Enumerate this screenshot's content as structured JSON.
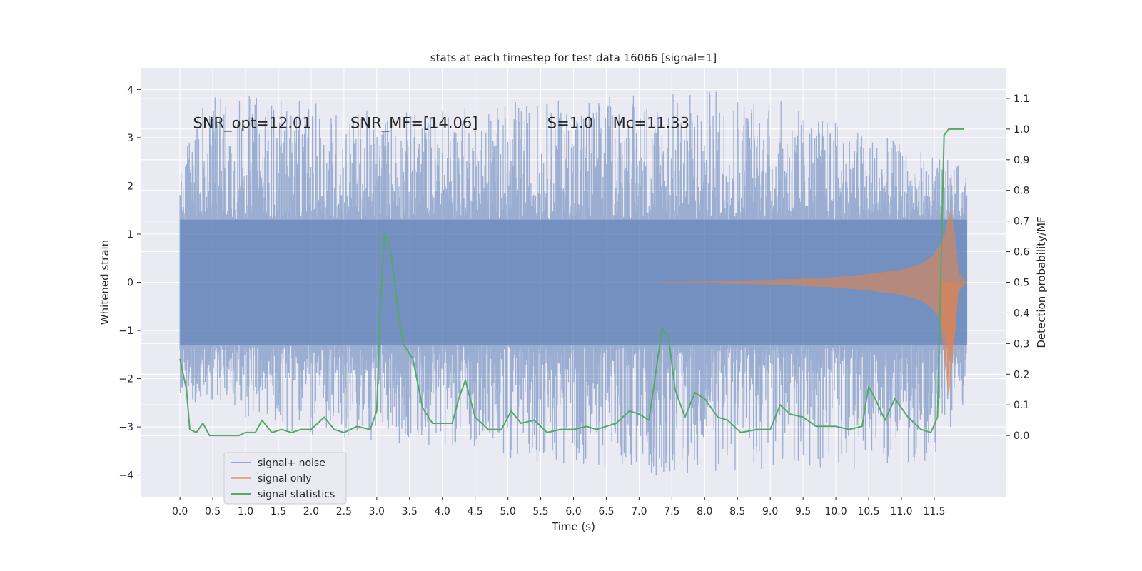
{
  "chart_data": {
    "type": "line",
    "title": "stats at each timestep for test data 16066 [signal=1]",
    "xlabel": "Time (s)",
    "ylabel": "Whitened strain",
    "ylabel_right": "Detection probability/MF",
    "xlim": [
      -0.6,
      12.6
    ],
    "ylim": [
      -4.45,
      4.45
    ],
    "ylim_right": [
      -0.2,
      1.2
    ],
    "x_ticks": [
      0.0,
      0.5,
      1.0,
      1.5,
      2.0,
      2.5,
      3.0,
      3.5,
      4.0,
      4.5,
      5.0,
      5.5,
      6.0,
      6.5,
      7.0,
      7.5,
      8.0,
      8.5,
      9.0,
      9.5,
      10.0,
      10.5,
      11.0,
      11.5
    ],
    "x_tick_labels": [
      "0.0",
      "0.5",
      "1.0",
      "1.5",
      "2.0",
      "2.5",
      "3.0",
      "3.5",
      "4.0",
      "4.5",
      "5.0",
      "5.5",
      "6.0",
      "6.5",
      "7.0",
      "7.5",
      "8.0",
      "8.5",
      "9.0",
      "9.5",
      "10.0",
      "10.5",
      "11.0",
      "11.5"
    ],
    "y_ticks": [
      -4,
      -3,
      -2,
      -1,
      0,
      1,
      2,
      3,
      4
    ],
    "y_tick_labels": [
      "−4",
      "−3",
      "−2",
      "−1",
      "0",
      "1",
      "2",
      "3",
      "4"
    ],
    "y_ticks_right": [
      0.0,
      0.1,
      0.2,
      0.3,
      0.4,
      0.5,
      0.6,
      0.7,
      0.8,
      0.9,
      1.0,
      1.1
    ],
    "y_tick_labels_right": [
      "0.0",
      "0.1",
      "0.2",
      "0.3",
      "0.4",
      "0.5",
      "0.6",
      "0.7",
      "0.8",
      "0.9",
      "1.0",
      "1.1"
    ],
    "grid": true,
    "legend_position": "lower-left",
    "annotations": [
      {
        "text": "SNR_opt=12.01",
        "x": 0.2,
        "y": 3.2
      },
      {
        "text": "SNR_MF=[14.06]",
        "x": 2.6,
        "y": 3.2
      },
      {
        "text": "S=1.0",
        "x": 5.6,
        "y": 3.2
      },
      {
        "text": "Mc=11.33",
        "x": 6.6,
        "y": 3.2
      }
    ],
    "series": [
      {
        "name": "signal+ noise",
        "color": "#4c72b0",
        "axis": "left",
        "style": "dense-noise",
        "x_range": [
          0.0,
          12.0
        ],
        "core_band": [
          -1.3,
          1.3
        ],
        "envelope_upper": [
          [
            0.0,
            2.4
          ],
          [
            0.3,
            4.05
          ],
          [
            3.0,
            3.55
          ],
          [
            8.5,
            4.1
          ],
          [
            12.0,
            2.4
          ]
        ],
        "envelope_lower": [
          [
            0.0,
            -2.4
          ],
          [
            2.2,
            -3.3
          ],
          [
            4.4,
            -3.4
          ],
          [
            5.0,
            -3.65
          ],
          [
            7.3,
            -4.05
          ],
          [
            8.0,
            -4.0
          ],
          [
            11.4,
            -3.8
          ],
          [
            12.0,
            -2.6
          ]
        ]
      },
      {
        "name": "signal only",
        "color": "#dd8452",
        "axis": "left",
        "style": "chirp",
        "envelope": [
          [
            7.2,
            0.0
          ],
          [
            8.0,
            0.02
          ],
          [
            9.0,
            0.05
          ],
          [
            10.0,
            0.11
          ],
          [
            10.5,
            0.17
          ],
          [
            11.0,
            0.26
          ],
          [
            11.3,
            0.38
          ],
          [
            11.5,
            0.58
          ],
          [
            11.65,
            0.95
          ],
          [
            11.75,
            1.55
          ],
          [
            11.82,
            1.0
          ],
          [
            11.87,
            0.2
          ],
          [
            12.0,
            0.0
          ]
        ],
        "lower_tail": [
          [
            11.6,
            -0.9
          ],
          [
            11.72,
            -2.4
          ],
          [
            11.8,
            -1.4
          ],
          [
            11.87,
            -0.1
          ]
        ]
      },
      {
        "name": "signal statistics",
        "color": "#55a868",
        "axis": "right",
        "style": "line",
        "points": [
          [
            0.0,
            0.25
          ],
          [
            0.1,
            0.15
          ],
          [
            0.15,
            0.02
          ],
          [
            0.25,
            0.01
          ],
          [
            0.35,
            0.04
          ],
          [
            0.45,
            0.0
          ],
          [
            0.6,
            0.0
          ],
          [
            0.9,
            0.0
          ],
          [
            1.0,
            0.01
          ],
          [
            1.15,
            0.01
          ],
          [
            1.25,
            0.05
          ],
          [
            1.4,
            0.01
          ],
          [
            1.55,
            0.02
          ],
          [
            1.7,
            0.01
          ],
          [
            1.85,
            0.02
          ],
          [
            2.0,
            0.02
          ],
          [
            2.2,
            0.06
          ],
          [
            2.35,
            0.02
          ],
          [
            2.5,
            0.01
          ],
          [
            2.7,
            0.03
          ],
          [
            2.9,
            0.02
          ],
          [
            3.0,
            0.08
          ],
          [
            3.05,
            0.4
          ],
          [
            3.12,
            0.66
          ],
          [
            3.2,
            0.62
          ],
          [
            3.3,
            0.45
          ],
          [
            3.4,
            0.3
          ],
          [
            3.55,
            0.25
          ],
          [
            3.7,
            0.09
          ],
          [
            3.85,
            0.04
          ],
          [
            4.0,
            0.04
          ],
          [
            4.15,
            0.04
          ],
          [
            4.25,
            0.12
          ],
          [
            4.35,
            0.18
          ],
          [
            4.5,
            0.06
          ],
          [
            4.7,
            0.02
          ],
          [
            4.9,
            0.02
          ],
          [
            5.05,
            0.08
          ],
          [
            5.2,
            0.04
          ],
          [
            5.4,
            0.05
          ],
          [
            5.6,
            0.01
          ],
          [
            5.8,
            0.02
          ],
          [
            6.0,
            0.02
          ],
          [
            6.2,
            0.03
          ],
          [
            6.35,
            0.02
          ],
          [
            6.5,
            0.03
          ],
          [
            6.65,
            0.04
          ],
          [
            6.85,
            0.08
          ],
          [
            7.0,
            0.07
          ],
          [
            7.15,
            0.05
          ],
          [
            7.35,
            0.35
          ],
          [
            7.45,
            0.32
          ],
          [
            7.55,
            0.15
          ],
          [
            7.7,
            0.06
          ],
          [
            7.85,
            0.14
          ],
          [
            8.0,
            0.12
          ],
          [
            8.2,
            0.06
          ],
          [
            8.35,
            0.05
          ],
          [
            8.55,
            0.01
          ],
          [
            8.8,
            0.02
          ],
          [
            9.0,
            0.02
          ],
          [
            9.15,
            0.1
          ],
          [
            9.3,
            0.07
          ],
          [
            9.5,
            0.06
          ],
          [
            9.7,
            0.03
          ],
          [
            10.0,
            0.03
          ],
          [
            10.2,
            0.02
          ],
          [
            10.4,
            0.03
          ],
          [
            10.5,
            0.16
          ],
          [
            10.6,
            0.12
          ],
          [
            10.75,
            0.05
          ],
          [
            10.9,
            0.12
          ],
          [
            11.1,
            0.06
          ],
          [
            11.3,
            0.02
          ],
          [
            11.45,
            0.01
          ],
          [
            11.55,
            0.06
          ],
          [
            11.65,
            0.98
          ],
          [
            11.72,
            1.0
          ],
          [
            11.8,
            1.0
          ],
          [
            11.95,
            1.0
          ]
        ]
      }
    ]
  }
}
